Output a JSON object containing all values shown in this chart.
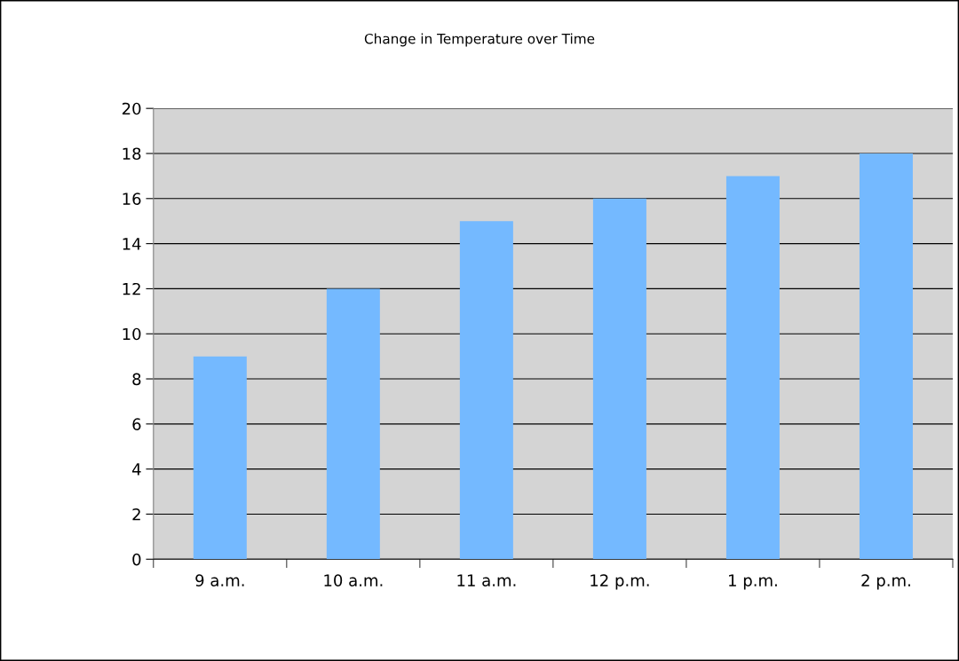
{
  "chart_data": {
    "type": "bar",
    "title": "Change in Temperature over Time",
    "categories": [
      "9 a.m.",
      "10 a.m.",
      "11 a.m.",
      "12 p.m.",
      "1 p.m.",
      "2 p.m."
    ],
    "values": [
      9,
      12,
      15,
      16,
      17,
      18
    ],
    "color": "#74b9ff",
    "ylim": [
      0,
      20
    ],
    "yticks": [
      0,
      2,
      4,
      6,
      8,
      10,
      12,
      14,
      16,
      18,
      20
    ],
    "grid": "y"
  }
}
